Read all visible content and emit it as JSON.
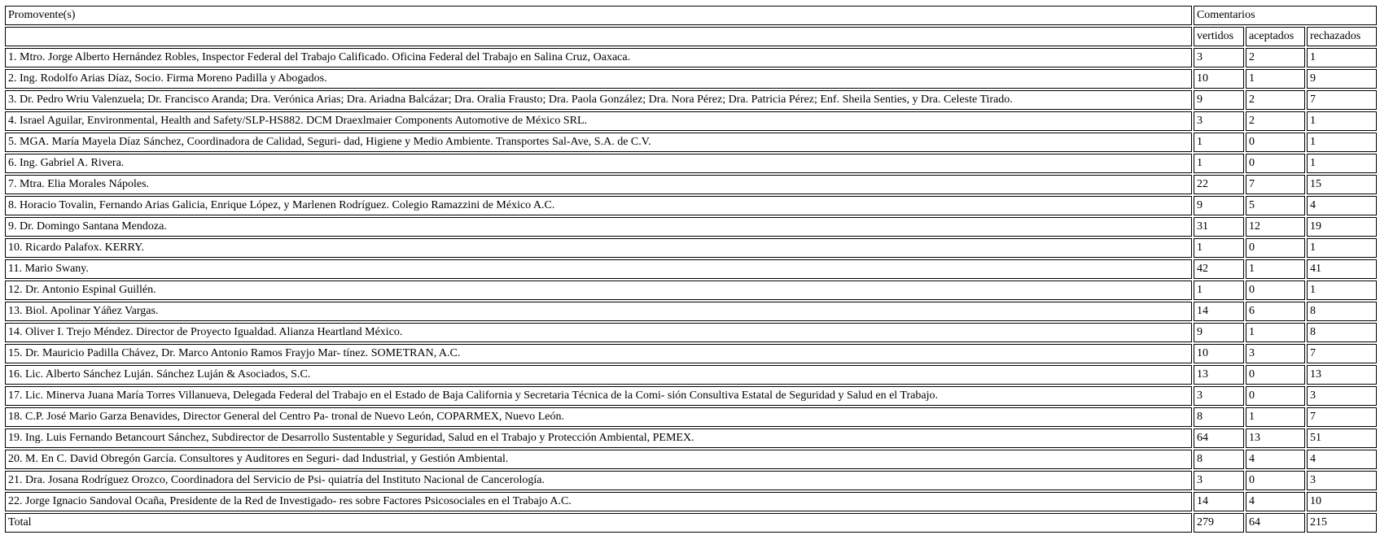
{
  "header": {
    "promoventes": "Promovente(s)",
    "comentarios": "Comentarios",
    "vertidos": "vertidos",
    "aceptados": "aceptados",
    "rechazados": "rechazados"
  },
  "rows": [
    {
      "name": "1. Mtro. Jorge Alberto Hernández Robles, Inspector Federal del Trabajo Calificado. Oficina Federal del Trabajo en Salina Cruz, Oaxaca.",
      "vertidos": "3",
      "aceptados": "2",
      "rechazados": "1"
    },
    {
      "name": "2. Ing. Rodolfo Arias Díaz, Socio. Firma Moreno Padilla y Abogados.",
      "vertidos": "10",
      "aceptados": "1",
      "rechazados": "9"
    },
    {
      "name": "3. Dr. Pedro Wriu Valenzuela; Dr. Francisco Aranda; Dra. Verónica Arias; Dra. Ariadna Balcázar; Dra. Oralia Frausto; Dra. Paola González; Dra. Nora Pérez; Dra. Patricia Pérez; Enf. Sheila Senties, y Dra. Celeste Tirado.",
      "vertidos": "9",
      "aceptados": "2",
      "rechazados": "7"
    },
    {
      "name": "4. Israel Aguilar, Environmental, Health and Safety/SLP-HS882. DCM Draexlmaier Components Automotive de México SRL.",
      "vertidos": "3",
      "aceptados": "2",
      "rechazados": "1"
    },
    {
      "name": "5. MGA. María Mayela Díaz Sánchez, Coordinadora de Calidad, Seguri- dad, Higiene y Medio Ambiente. Transportes Sal-Ave, S.A. de C.V.",
      "vertidos": "1",
      "aceptados": "0",
      "rechazados": "1"
    },
    {
      "name": "6. Ing. Gabriel A. Rivera.",
      "vertidos": "1",
      "aceptados": "0",
      "rechazados": "1"
    },
    {
      "name": "7. Mtra. Elia Morales Nápoles.",
      "vertidos": "22",
      "aceptados": "7",
      "rechazados": "15"
    },
    {
      "name": "8. Horacio Tovalin, Fernando Arias Galicia, Enrique López, y Marlenen Rodríguez. Colegio Ramazzini de México A.C.",
      "vertidos": "9",
      "aceptados": "5",
      "rechazados": "4"
    },
    {
      "name": "9. Dr. Domingo Santana Mendoza.",
      "vertidos": "31",
      "aceptados": "12",
      "rechazados": "19"
    },
    {
      "name": "10. Ricardo Palafox. KERRY.",
      "vertidos": "1",
      "aceptados": "0",
      "rechazados": "1"
    },
    {
      "name": "11. Mario Swany.",
      "vertidos": "42",
      "aceptados": "1",
      "rechazados": "41"
    },
    {
      "name": "12. Dr. Antonio Espinal Guillén.",
      "vertidos": "1",
      "aceptados": "0",
      "rechazados": "1"
    },
    {
      "name": "13. Biol. Apolinar Yáñez Vargas.",
      "vertidos": "14",
      "aceptados": "6",
      "rechazados": "8"
    },
    {
      "name": "14. Oliver I. Trejo Méndez. Director de Proyecto Igualdad. Alianza Heartland México.",
      "vertidos": "9",
      "aceptados": "1",
      "rechazados": "8"
    },
    {
      "name": "15. Dr. Mauricio Padilla Chávez, Dr. Marco Antonio Ramos Frayjo Mar- tínez. SOMETRAN, A.C.",
      "vertidos": "10",
      "aceptados": "3",
      "rechazados": "7"
    },
    {
      "name": "16. Lic. Alberto Sánchez Luján. Sánchez Luján & Asociados, S.C.",
      "vertidos": "13",
      "aceptados": "0",
      "rechazados": "13"
    },
    {
      "name": "17. Lic. Minerva Juana María Torres Villanueva, Delegada Federal del Trabajo en el Estado de Baja California y Secretaria Técnica de la Comi- sión Consultiva Estatal de Seguridad y Salud en el Trabajo.",
      "vertidos": "3",
      "aceptados": "0",
      "rechazados": "3"
    },
    {
      "name": "18. C.P. José Mario Garza Benavides, Director General del Centro Pa- tronal de Nuevo León, COPARMEX, Nuevo León.",
      "vertidos": "8",
      "aceptados": "1",
      "rechazados": "7"
    },
    {
      "name": "19. Ing. Luis Fernando Betancourt Sánchez, Subdirector de Desarrollo Sustentable y Seguridad, Salud en el Trabajo y Protección Ambiental, PEMEX.",
      "vertidos": "64",
      "aceptados": "13",
      "rechazados": "51"
    },
    {
      "name": "20. M. En C. David Obregón García. Consultores y Auditores en Seguri- dad Industrial, y Gestión Ambiental.",
      "vertidos": "8",
      "aceptados": "4",
      "rechazados": "4"
    },
    {
      "name": "21. Dra. Josana Rodríguez Orozco, Coordinadora del Servicio de Psi- quiatría del Instituto Nacional de Cancerología.",
      "vertidos": "3",
      "aceptados": "0",
      "rechazados": "3"
    },
    {
      "name": "22. Jorge Ignacio Sandoval Ocaña, Presidente de la Red de Investigado- res sobre Factores Psicosociales en el Trabajo A.C.",
      "vertidos": "14",
      "aceptados": "4",
      "rechazados": "10"
    }
  ],
  "total": {
    "name": "Total",
    "vertidos": "279",
    "aceptados": "64",
    "rechazados": "215"
  }
}
